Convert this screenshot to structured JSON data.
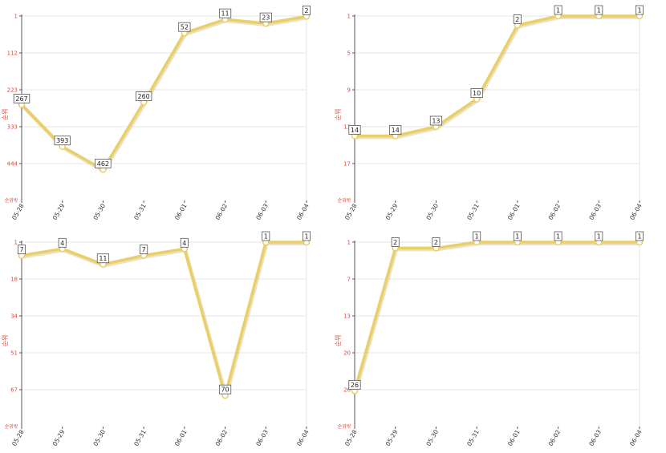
{
  "chart_data": [
    {
      "type": "line",
      "categories": [
        "05-28",
        "05-29",
        "05-30",
        "05-31",
        "06-01",
        "06-02",
        "06-03",
        "06-04"
      ],
      "values": [
        267,
        393,
        462,
        260,
        52,
        11,
        23,
        2
      ],
      "yticks": [
        "1",
        "112",
        "223",
        "333",
        "444"
      ],
      "ylabel": "순위",
      "bottom_label": "순위밖",
      "ylim": [
        1,
        555
      ],
      "reversed_y": true,
      "line_color": "#e8cf6a"
    },
    {
      "type": "line",
      "categories": [
        "05-28",
        "05-29",
        "05-30",
        "05-31",
        "06-01",
        "06-02",
        "06-03",
        "06-04"
      ],
      "values": [
        14,
        14,
        13,
        10,
        2,
        1,
        1,
        1
      ],
      "yticks": [
        "1",
        "5",
        "9",
        "13",
        "17"
      ],
      "ylabel": "순위",
      "bottom_label": "순위밖",
      "ylim": [
        1,
        21
      ],
      "reversed_y": true,
      "line_color": "#e8cf6a"
    },
    {
      "type": "line",
      "categories": [
        "05-28",
        "05-29",
        "05-30",
        "05-31",
        "06-01",
        "06-02",
        "06-03",
        "06-04"
      ],
      "values": [
        7,
        4,
        11,
        7,
        4,
        70,
        1,
        1
      ],
      "yticks": [
        "1",
        "18",
        "34",
        "51",
        "67"
      ],
      "ylabel": "순위",
      "bottom_label": "순위밖",
      "ylim": [
        1,
        84
      ],
      "reversed_y": true,
      "line_color": "#e8cf6a"
    },
    {
      "type": "line",
      "categories": [
        "05-28",
        "05-29",
        "05-30",
        "05-31",
        "06-01",
        "06-02",
        "06-03",
        "06-04"
      ],
      "values": [
        26,
        2,
        2,
        1,
        1,
        1,
        1,
        1
      ],
      "yticks": [
        "1",
        "7",
        "13",
        "20",
        "26"
      ],
      "ylabel": "순위",
      "bottom_label": "순위밖",
      "ylim": [
        1,
        32
      ],
      "reversed_y": true,
      "line_color": "#e8cf6a"
    }
  ]
}
